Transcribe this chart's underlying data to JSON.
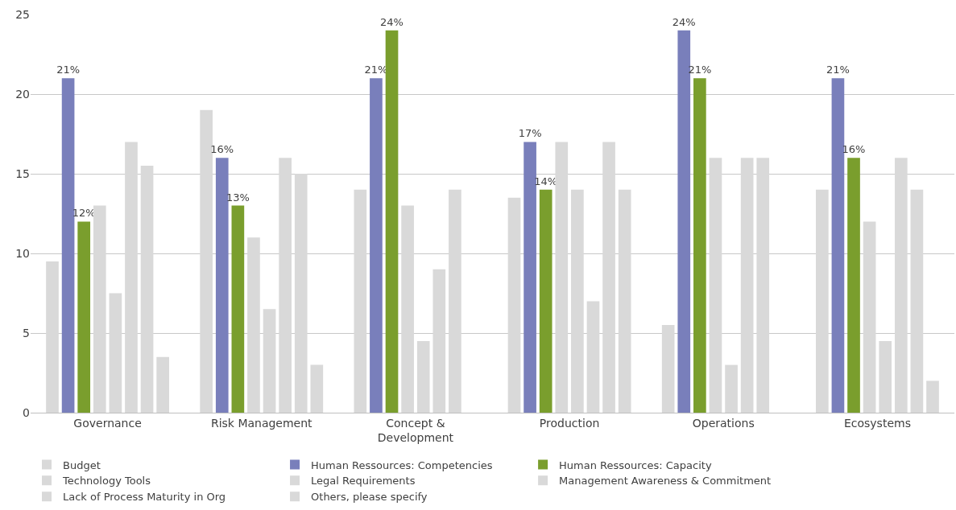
{
  "chart_data": {
    "type": "bar",
    "categories": [
      "Governance",
      "Risk Management",
      "Concept & Development",
      "Production",
      "Operations",
      "Ecosystems"
    ],
    "series": [
      {
        "name": "Budget",
        "color": "#d9d9d9",
        "values": [
          9.5,
          19,
          14,
          13.5,
          5.5,
          14
        ]
      },
      {
        "name": "Human Ressources: Competencies",
        "color": "#797fbb",
        "values": [
          21,
          16,
          21,
          17,
          24,
          21
        ],
        "value_labels": [
          "21%",
          "16%",
          "21%",
          "17%",
          "24%",
          "21%"
        ]
      },
      {
        "name": "Human Ressources: Capacity",
        "color": "#7a9e2d",
        "values": [
          12,
          13,
          24,
          14,
          21,
          16
        ],
        "value_labels": [
          "12%",
          "13%",
          "24%",
          "14%",
          "21%",
          "16%"
        ]
      },
      {
        "name": "Technology Tools",
        "color": "#d9d9d9",
        "values": [
          13,
          11,
          13,
          17,
          16,
          12
        ]
      },
      {
        "name": "Legal Requirements",
        "color": "#d9d9d9",
        "values": [
          7.5,
          6.5,
          4.5,
          14,
          3,
          4.5
        ]
      },
      {
        "name": "Management Awareness & Commitment",
        "color": "#d9d9d9",
        "values": [
          17,
          16,
          9,
          7,
          16,
          16
        ]
      },
      {
        "name": "Lack of Process Maturity in Org",
        "color": "#d9d9d9",
        "values": [
          15.5,
          15,
          14,
          17,
          16,
          14
        ]
      },
      {
        "name": "Others, please specify",
        "color": "#d9d9d9",
        "values": [
          3.5,
          3,
          null,
          14,
          null,
          2
        ]
      }
    ],
    "ylim": [
      0,
      25
    ],
    "yticks": [
      0,
      5,
      10,
      15,
      20,
      25
    ],
    "grid": "y",
    "legend": "bottom"
  }
}
